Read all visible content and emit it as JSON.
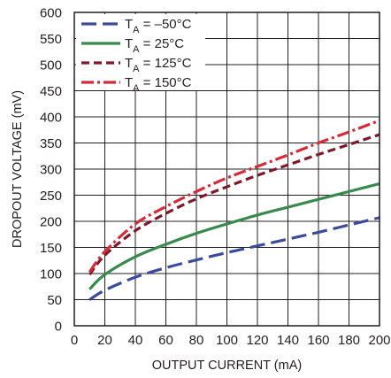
{
  "chart_data": {
    "type": "line",
    "xlabel": "OUTPUT CURRENT (mA)",
    "ylabel": "DROPOUT VOLTAGE (mV)",
    "xlim": [
      0,
      200
    ],
    "ylim": [
      0,
      600
    ],
    "xticks": [
      "0",
      "20",
      "40",
      "60",
      "80",
      "100",
      "120",
      "140",
      "160",
      "180",
      "200"
    ],
    "yticks": [
      "0",
      "50",
      "100",
      "150",
      "200",
      "250",
      "300",
      "350",
      "400",
      "450",
      "500",
      "550",
      "600"
    ],
    "grid": true,
    "legend_position": "top-left",
    "series": [
      {
        "name": "T_A = –50°C",
        "legend_main": "T",
        "legend_sub": "A",
        "legend_rest": " = –50°C",
        "color": "#3b4a9b",
        "dash": "long-dash",
        "x": [
          10,
          20,
          40,
          60,
          80,
          100,
          120,
          140,
          160,
          180,
          200
        ],
        "y": [
          50,
          68,
          93,
          111,
          126,
          140,
          153,
          166,
          179,
          193,
          207
        ]
      },
      {
        "name": "T_A = 25°C",
        "legend_main": "T",
        "legend_sub": "A",
        "legend_rest": " = 25°C",
        "color": "#3a8a4f",
        "dash": "solid",
        "x": [
          10,
          20,
          40,
          60,
          80,
          100,
          120,
          140,
          160,
          180,
          200
        ],
        "y": [
          70,
          98,
          132,
          156,
          177,
          195,
          212,
          227,
          242,
          257,
          272
        ]
      },
      {
        "name": "T_A = 125°C",
        "legend_main": "T",
        "legend_sub": "A",
        "legend_rest": " = 125°C",
        "color": "#7c1a2c",
        "dash": "dash",
        "x": [
          10,
          20,
          40,
          60,
          80,
          100,
          120,
          140,
          160,
          180,
          200
        ],
        "y": [
          98,
          135,
          182,
          215,
          243,
          266,
          288,
          308,
          328,
          347,
          366
        ]
      },
      {
        "name": "T_A = 150°C",
        "legend_main": "T",
        "legend_sub": "A",
        "legend_rest": " = 150°C",
        "color": "#d42b3a",
        "dash": "dash-dot",
        "x": [
          10,
          20,
          40,
          60,
          80,
          100,
          120,
          140,
          160,
          180,
          200
        ],
        "y": [
          103,
          142,
          195,
          228,
          257,
          283,
          305,
          327,
          350,
          371,
          393
        ]
      }
    ]
  }
}
